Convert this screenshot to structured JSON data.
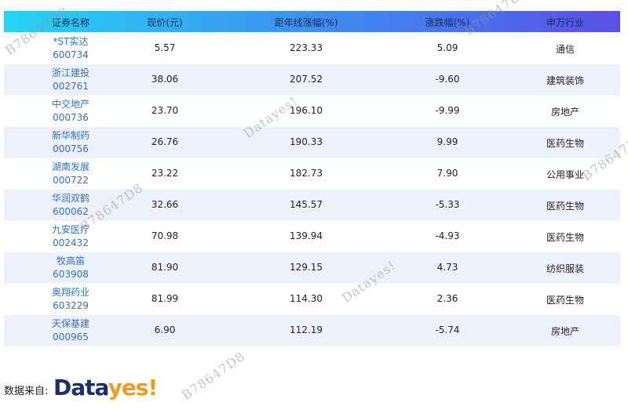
{
  "table": {
    "headers": [
      "证券名称",
      "现价(元)",
      "距年线涨幅(%)",
      "涨跌幅(%)",
      "申万行业"
    ],
    "rows": [
      [
        [
          "*ST实达",
          "600734"
        ],
        "5.57",
        "223.33",
        "5.09",
        "通信"
      ],
      [
        [
          "浙江建投",
          "002761"
        ],
        "38.06",
        "207.52",
        "-9.60",
        "建筑装饰"
      ],
      [
        [
          "中交地产",
          "000736"
        ],
        "23.70",
        "196.10",
        "-9.99",
        "房地产"
      ],
      [
        [
          "新华制药",
          "000756"
        ],
        "26.76",
        "190.33",
        "9.99",
        "医药生物"
      ],
      [
        [
          "湖南发展",
          "000722"
        ],
        "23.22",
        "182.73",
        "7.90",
        "公用事业"
      ],
      [
        [
          "华润双鹤",
          "600062"
        ],
        "32.66",
        "145.57",
        "-5.33",
        "医药生物"
      ],
      [
        [
          "九安医疗",
          "002432"
        ],
        "70.98",
        "139.94",
        "-4.93",
        "医药生物"
      ],
      [
        [
          "牧高笛",
          "603908"
        ],
        "81.90",
        "129.15",
        "4.73",
        "纺织服装"
      ],
      [
        [
          "奥翔药业",
          "603229"
        ],
        "81.99",
        "114.30",
        "2.36",
        "医药生物"
      ],
      [
        [
          "天保基建",
          "000965"
        ],
        "6.90",
        "112.19",
        "-5.74",
        "房地产"
      ]
    ]
  },
  "footer": {
    "label": "数据来自:",
    "logo_part1": "Data",
    "logo_part2": "yes!"
  },
  "watermarks": [
    "B78647D8",
    "B78647D8",
    "Datayes!",
    "B78647D8",
    "B78647D8",
    "Datayes!",
    "B78647D8"
  ]
}
